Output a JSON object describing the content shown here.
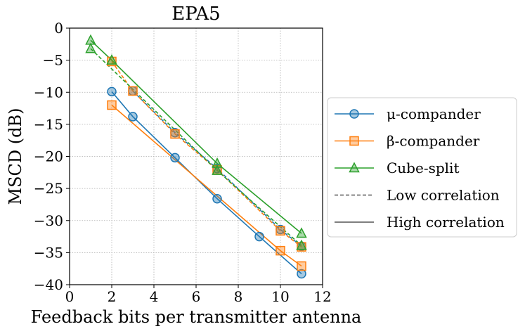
{
  "chart_data": {
    "type": "line",
    "title": "EPA5",
    "xlabel": "Feedback bits per transmitter antenna",
    "ylabel": "MSCD (dB)",
    "xlim": [
      0,
      12
    ],
    "ylim": [
      -40,
      0
    ],
    "xticks": [
      0,
      2,
      4,
      6,
      8,
      10,
      12
    ],
    "yticks": [
      0,
      -5,
      -10,
      -15,
      -20,
      -25,
      -30,
      -35,
      -40
    ],
    "ytick_labels": [
      "0",
      "−5",
      "−10",
      "−15",
      "−20",
      "−25",
      "−30",
      "−35",
      "−40"
    ],
    "grid": true,
    "legend_position": "outside-right",
    "legend": [
      {
        "label": "μ-compander",
        "marker": "circle",
        "color": "#1f77b4",
        "line": "solid"
      },
      {
        "label": "β-compander",
        "marker": "square",
        "color": "#ff7f0e",
        "line": "solid"
      },
      {
        "label": "Cube-split",
        "marker": "triangle",
        "color": "#2ca02c",
        "line": "solid"
      },
      {
        "label": "Low correlation",
        "marker": "none",
        "color": "#555555",
        "line": "dashed"
      },
      {
        "label": "High correlation",
        "marker": "none",
        "color": "#555555",
        "line": "solid"
      }
    ],
    "series": [
      {
        "method": "μ-compander",
        "correlation": "Low correlation",
        "color": "#1f77b4",
        "marker": "circle",
        "dash": "dashed",
        "x": [
          3,
          5,
          7,
          10,
          11
        ],
        "y": [
          -9.8,
          -16.3,
          -21.9,
          -31.4,
          -34.0
        ]
      },
      {
        "method": "β-compander",
        "correlation": "Low correlation",
        "color": "#ff7f0e",
        "marker": "square",
        "dash": "dashed",
        "x": [
          2,
          3,
          5,
          7,
          10,
          11
        ],
        "y": [
          -5.2,
          -9.8,
          -16.5,
          -22.1,
          -31.6,
          -34.1
        ]
      },
      {
        "method": "Cube-split",
        "correlation": "Low correlation",
        "color": "#2ca02c",
        "marker": "triangle",
        "dash": "dashed",
        "x": [
          1,
          7,
          11
        ],
        "y": [
          -3.2,
          -22.2,
          -33.9
        ]
      },
      {
        "method": "μ-compander",
        "correlation": "High correlation",
        "color": "#1f77b4",
        "marker": "circle",
        "dash": "solid",
        "x": [
          2,
          3,
          5,
          7,
          9,
          11
        ],
        "y": [
          -9.9,
          -13.8,
          -20.2,
          -26.6,
          -32.5,
          -38.3
        ]
      },
      {
        "method": "β-compander",
        "correlation": "High correlation",
        "color": "#ff7f0e",
        "marker": "square",
        "dash": "solid",
        "x": [
          2,
          10,
          11
        ],
        "y": [
          -12.0,
          -34.7,
          -37.1
        ]
      },
      {
        "method": "Cube-split",
        "correlation": "High correlation",
        "color": "#2ca02c",
        "marker": "triangle",
        "dash": "solid",
        "x": [
          1,
          2,
          7,
          11
        ],
        "y": [
          -1.9,
          -5.0,
          -21.1,
          -32.0
        ]
      }
    ]
  }
}
